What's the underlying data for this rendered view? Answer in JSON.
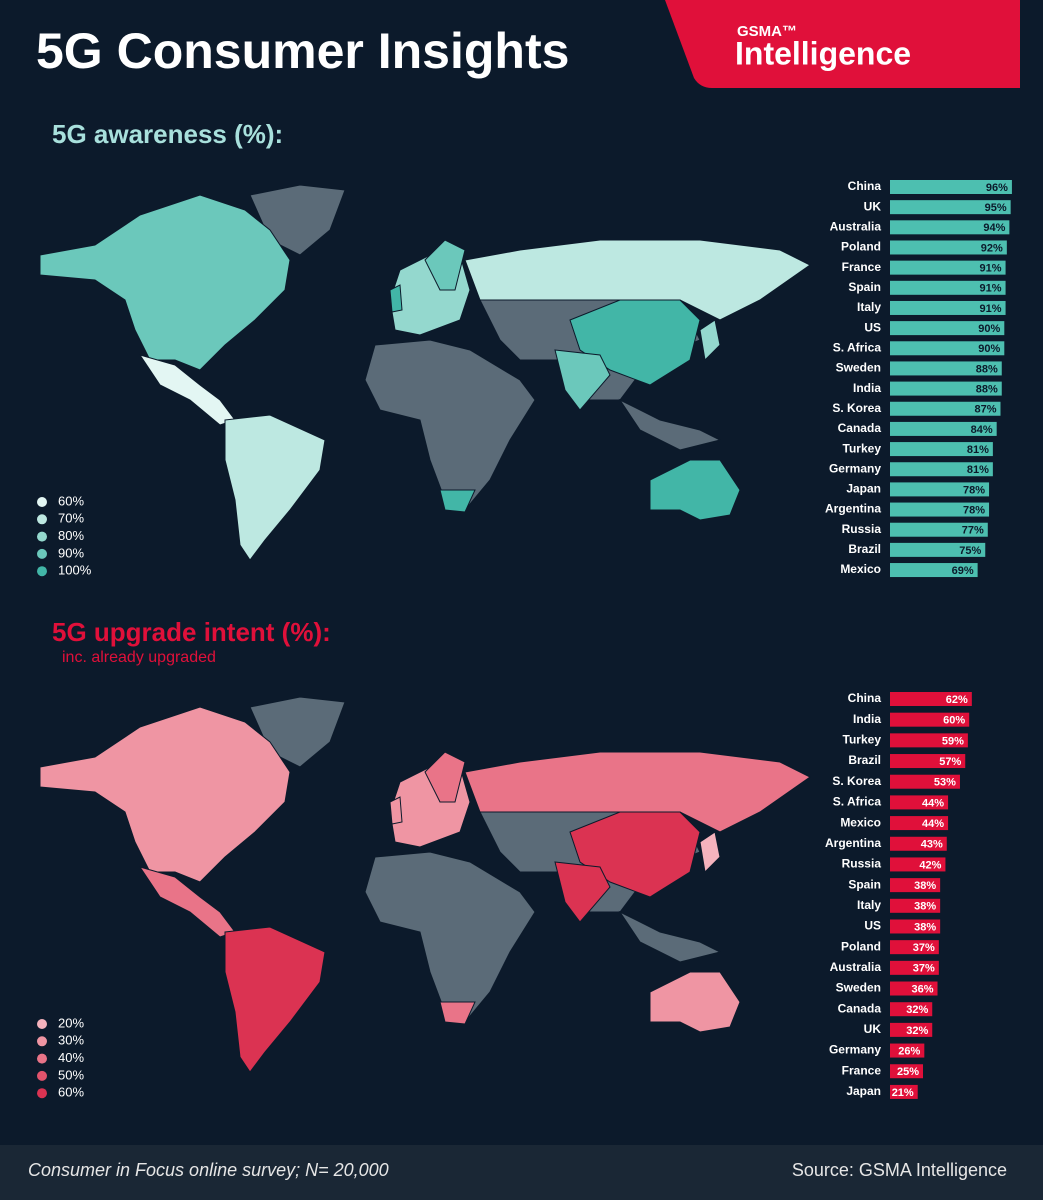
{
  "header": {
    "title": "5G Consumer Insights",
    "logo_small": "GSMA™",
    "logo": "Intelligence"
  },
  "chart_data": [
    {
      "type": "bar",
      "orientation": "horizontal",
      "title": "5G awareness (%):",
      "categories": [
        "China",
        "UK",
        "Australia",
        "Poland",
        "France",
        "Spain",
        "Italy",
        "US",
        "S. Africa",
        "Sweden",
        "India",
        "S. Korea",
        "Canada",
        "Turkey",
        "Germany",
        "Japan",
        "Argentina",
        "Russia",
        "Brazil",
        "Mexico"
      ],
      "values": [
        96,
        95,
        94,
        92,
        91,
        91,
        91,
        90,
        90,
        88,
        88,
        87,
        84,
        81,
        81,
        78,
        78,
        77,
        75,
        69
      ],
      "value_labels": [
        "96%",
        "95%",
        "94%",
        "92%",
        "91%",
        "91%",
        "91%",
        "90%",
        "90%",
        "88%",
        "88%",
        "87%",
        "84%",
        "81%",
        "81%",
        "78%",
        "78%",
        "77%",
        "75%",
        "69%"
      ],
      "color": "#4dbfb0",
      "legend": {
        "labels": [
          "60%",
          "70%",
          "80%",
          "90%",
          "100%"
        ],
        "colors": [
          "#e3f6f3",
          "#bde8e1",
          "#94d8ce",
          "#6bc8bb",
          "#42b6a7"
        ]
      }
    },
    {
      "type": "bar",
      "orientation": "horizontal",
      "title": "5G upgrade intent (%):",
      "subtitle": "inc. already upgraded",
      "categories": [
        "China",
        "India",
        "Turkey",
        "Brazil",
        "S. Korea",
        "S. Africa",
        "Mexico",
        "Argentina",
        "Russia",
        "Spain",
        "Italy",
        "US",
        "Poland",
        "Australia",
        "Sweden",
        "Canada",
        "UK",
        "Germany",
        "France",
        "Japan"
      ],
      "values": [
        62,
        60,
        59,
        57,
        53,
        44,
        44,
        43,
        42,
        38,
        38,
        38,
        37,
        37,
        36,
        32,
        32,
        26,
        25,
        21
      ],
      "value_labels": [
        "62%",
        "60%",
        "59%",
        "57%",
        "53%",
        "44%",
        "44%",
        "43%",
        "42%",
        "38%",
        "38%",
        "38%",
        "37%",
        "37%",
        "36%",
        "32%",
        "32%",
        "26%",
        "25%",
        "21%"
      ],
      "color": "#e0103a",
      "legend": {
        "labels": [
          "20%",
          "30%",
          "40%",
          "50%",
          "60%"
        ],
        "colors": [
          "#f5b3bd",
          "#ef95a3",
          "#e97488",
          "#e2536c",
          "#db3352"
        ]
      }
    }
  ],
  "footer": {
    "note": "Consumer in Focus online survey; N= 20,000",
    "source": "Source: GSMA Intelligence"
  }
}
